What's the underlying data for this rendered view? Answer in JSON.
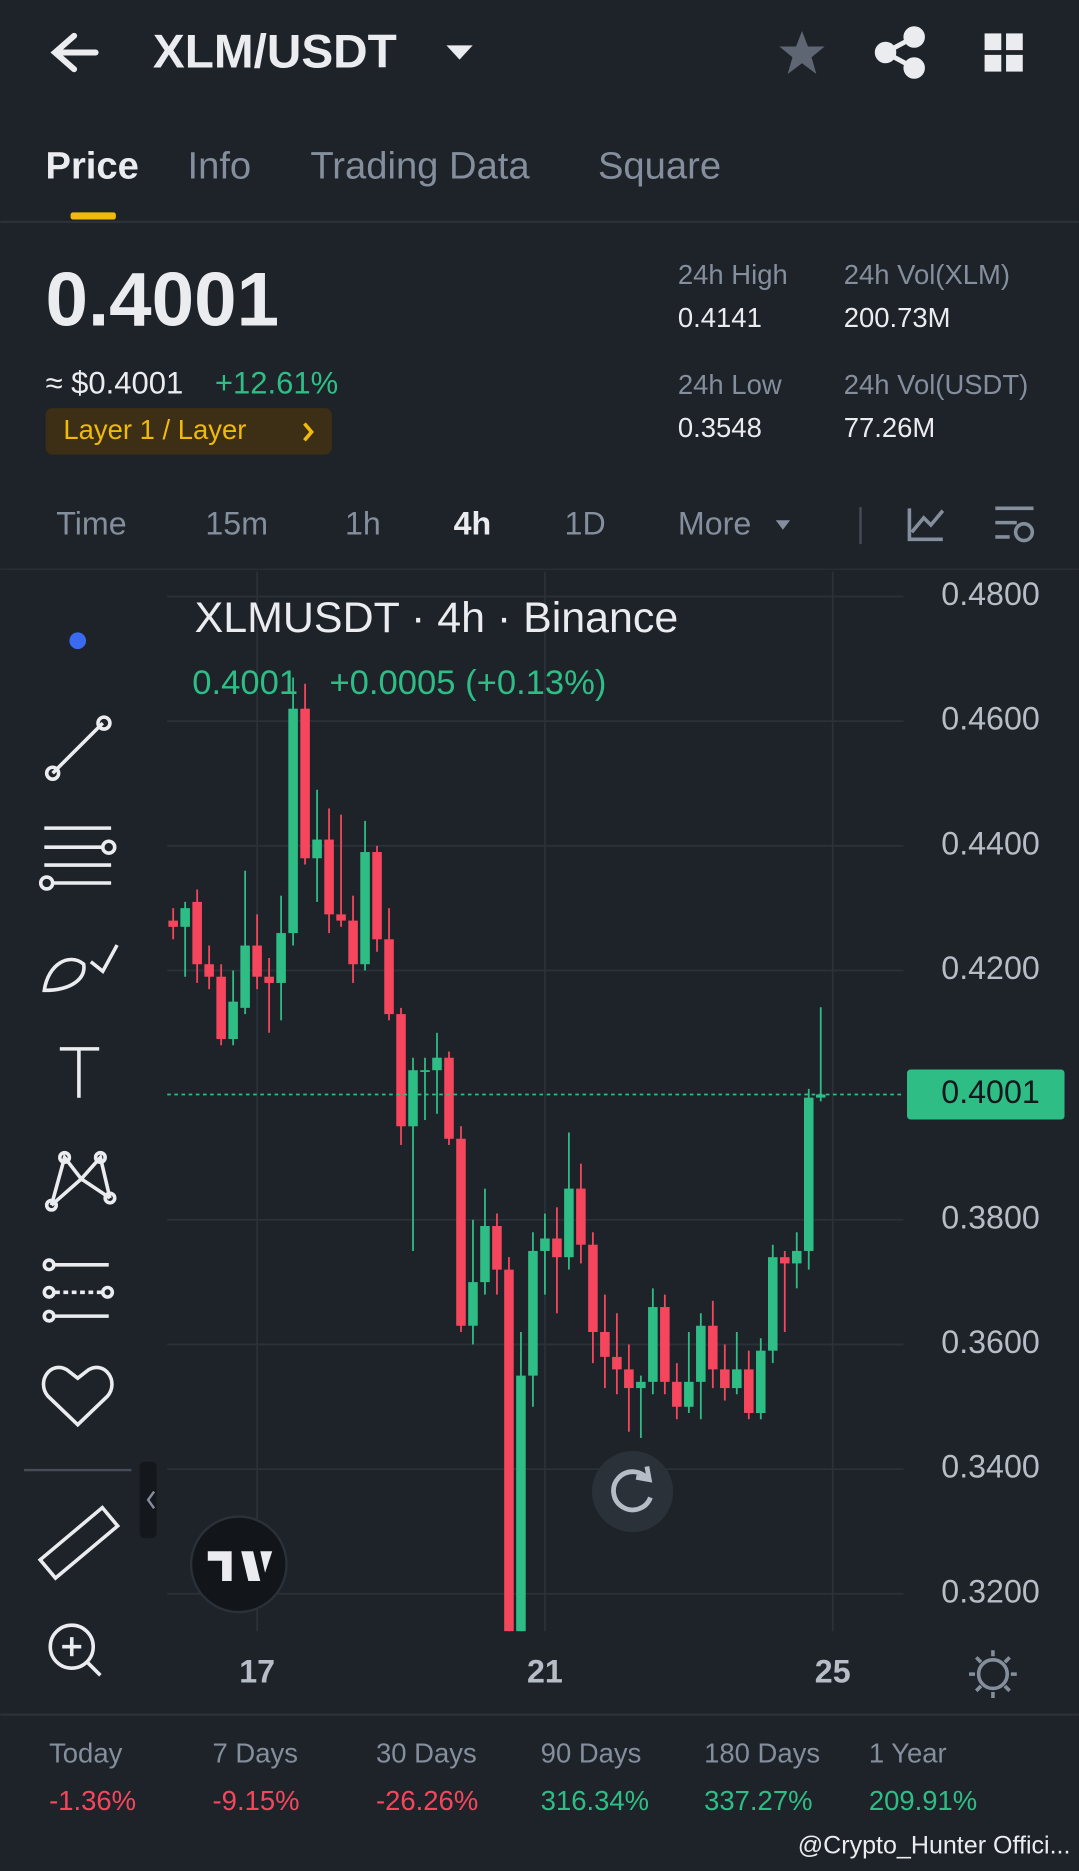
{
  "header": {
    "title": "XLM/USDT"
  },
  "tabs": [
    "Price",
    "Info",
    "Trading Data",
    "Square"
  ],
  "ticker": {
    "price": "0.4001",
    "usd_price": "≈ $0.4001",
    "change": "+12.61%",
    "tag": "Layer 1 / Layer",
    "stats": [
      {
        "label": "24h High",
        "value": "0.4141"
      },
      {
        "label": "24h Vol(XLM)",
        "value": "200.73M"
      },
      {
        "label": "24h Low",
        "value": "0.3548"
      },
      {
        "label": "24h Vol(USDT)",
        "value": "77.26M"
      }
    ]
  },
  "intervals": [
    "Time",
    "15m",
    "1h",
    "4h",
    "1D",
    "More"
  ],
  "chart_data": {
    "type": "candlestick",
    "title": "XLMUSDT · 4h · Binance",
    "last": "0.4001",
    "last_change": "+0.0005 (+0.13%)",
    "up_color": "#2ebd85",
    "down_color": "#f6465d",
    "categories": [
      null,
      null,
      null,
      null,
      null,
      null,
      null,
      "17",
      null,
      null,
      null,
      null,
      null,
      null,
      null,
      null,
      null,
      null,
      null,
      null,
      null,
      null,
      null,
      null,
      null,
      null,
      null,
      null,
      null,
      null,
      null,
      "21",
      null,
      null,
      null,
      null,
      null,
      null,
      null,
      null,
      null,
      null,
      null,
      null,
      null,
      null,
      null,
      null,
      null,
      null,
      null,
      null,
      null,
      null,
      null,
      "25",
      null,
      null,
      null,
      null,
      null,
      null
    ],
    "open": [
      0.428,
      0.427,
      0.431,
      0.421,
      0.419,
      0.409,
      0.414,
      0.424,
      0.419,
      0.418,
      0.426,
      0.462,
      0.438,
      0.441,
      0.429,
      0.428,
      0.421,
      0.439,
      0.425,
      0.413,
      0.395,
      0.404,
      0.404,
      0.406,
      0.393,
      0.363,
      0.37,
      0.379,
      0.372,
      0.314,
      0.355,
      0.375,
      0.377,
      0.374,
      0.385,
      0.376,
      0.362,
      0.358,
      0.356,
      0.353,
      0.354,
      0.366,
      0.354,
      0.35,
      0.354,
      0.363,
      0.356,
      0.353,
      0.356,
      0.349,
      0.359,
      0.374,
      0.373,
      0.375,
      0.3996,
      null,
      null,
      null,
      null,
      null,
      null,
      null
    ],
    "high": [
      0.43,
      0.431,
      0.433,
      0.424,
      0.421,
      0.42,
      0.436,
      0.429,
      0.422,
      0.432,
      0.467,
      0.466,
      0.449,
      0.446,
      0.445,
      0.432,
      0.444,
      0.44,
      0.43,
      0.414,
      0.406,
      0.406,
      0.41,
      0.407,
      0.395,
      0.38,
      0.385,
      0.381,
      0.374,
      0.362,
      0.378,
      0.381,
      0.382,
      0.394,
      0.389,
      0.378,
      0.368,
      0.365,
      0.36,
      0.355,
      0.369,
      0.368,
      0.357,
      0.362,
      0.365,
      0.367,
      0.36,
      0.362,
      0.359,
      0.361,
      0.376,
      0.375,
      0.378,
      0.401,
      0.4141,
      null,
      null,
      null,
      null,
      null,
      null,
      null
    ],
    "low": [
      0.425,
      0.419,
      0.418,
      0.417,
      0.408,
      0.408,
      0.413,
      0.417,
      0.41,
      0.412,
      0.424,
      0.437,
      0.431,
      0.426,
      0.427,
      0.418,
      0.42,
      0.423,
      0.412,
      0.392,
      0.375,
      0.396,
      0.397,
      0.392,
      0.362,
      0.36,
      0.368,
      0.368,
      0.314,
      0.314,
      0.35,
      0.368,
      0.365,
      0.372,
      0.373,
      0.357,
      0.353,
      0.352,
      0.346,
      0.345,
      0.352,
      0.352,
      0.348,
      0.349,
      0.348,
      0.353,
      0.351,
      0.352,
      0.348,
      0.348,
      0.357,
      0.362,
      0.369,
      0.372,
      0.399,
      null,
      null,
      null,
      null,
      null,
      null,
      null
    ],
    "close": [
      0.427,
      0.43,
      0.421,
      0.419,
      0.409,
      0.415,
      0.424,
      0.419,
      0.418,
      0.426,
      0.462,
      0.438,
      0.441,
      0.429,
      0.428,
      0.421,
      0.439,
      0.425,
      0.413,
      0.395,
      0.404,
      0.404,
      0.406,
      0.393,
      0.363,
      0.37,
      0.379,
      0.372,
      0.314,
      0.355,
      0.375,
      0.377,
      0.374,
      0.385,
      0.376,
      0.362,
      0.358,
      0.356,
      0.353,
      0.354,
      0.366,
      0.354,
      0.35,
      0.354,
      0.363,
      0.356,
      0.353,
      0.356,
      0.349,
      0.359,
      0.374,
      0.373,
      0.375,
      0.3996,
      0.4001,
      null,
      null,
      null,
      null,
      null,
      null,
      null
    ],
    "ylim": [
      0.314,
      0.484
    ],
    "yticks": [
      {
        "value": 0.48,
        "label": "0.4800"
      },
      {
        "value": 0.46,
        "label": "0.4600"
      },
      {
        "value": 0.44,
        "label": "0.4400"
      },
      {
        "value": 0.42,
        "label": "0.4200"
      },
      {
        "value": 0.38,
        "label": "0.3800"
      },
      {
        "value": 0.36,
        "label": "0.3600"
      },
      {
        "value": 0.34,
        "label": "0.3400"
      },
      {
        "value": 0.32,
        "label": "0.3200"
      }
    ],
    "grid": true
  },
  "performance": [
    {
      "label": "Today",
      "value": "-1.36%"
    },
    {
      "label": "7 Days",
      "value": "-9.15%"
    },
    {
      "label": "30 Days",
      "value": "-26.26%"
    },
    {
      "label": "90 Days",
      "value": "316.34%"
    },
    {
      "label": "180 Days",
      "value": "337.27%"
    },
    {
      "label": "1 Year",
      "value": "209.91%"
    }
  ],
  "watermark": "@Crypto_Hunter Offici..."
}
